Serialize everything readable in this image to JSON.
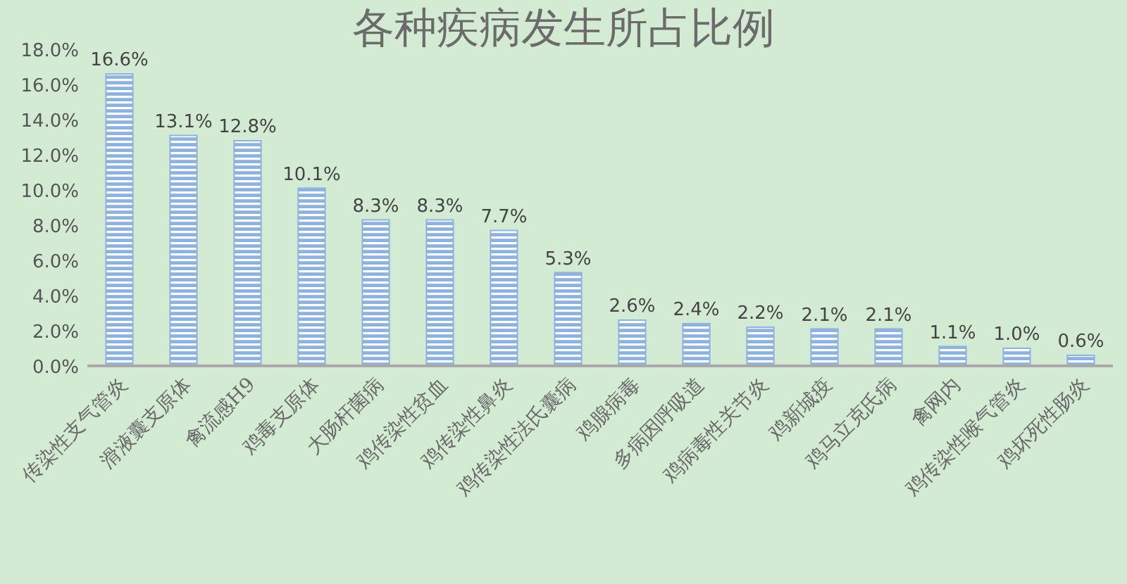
{
  "chart_data": {
    "type": "bar",
    "title": "各种疾病发生所占比例",
    "categories": [
      "传染性支气管炎",
      "滑液囊支原体",
      "禽流感H9",
      "鸡毒支原体",
      "大肠杆菌病",
      "鸡传染性贫血",
      "鸡传染性鼻炎",
      "鸡传染性法氏囊病",
      "鸡腺病毒",
      "多病因呼吸道",
      "鸡病毒性关节炎",
      "鸡新城疫",
      "鸡马立克氏病",
      "禽网内",
      "鸡传染性喉气管炎",
      "鸡坏死性肠炎"
    ],
    "values": [
      16.6,
      13.1,
      12.8,
      10.1,
      8.3,
      8.3,
      7.7,
      5.3,
      2.6,
      2.4,
      2.2,
      2.1,
      2.1,
      1.1,
      1.0,
      0.6
    ],
    "value_labels": [
      "16.6%",
      "13.1%",
      "12.8%",
      "10.1%",
      "8.3%",
      "8.3%",
      "7.7%",
      "5.3%",
      "2.6%",
      "2.4%",
      "2.2%",
      "2.1%",
      "2.1%",
      "1.1%",
      "1.0%",
      "0.6%"
    ],
    "color": "#8db3e2",
    "ylim": [
      0,
      18
    ],
    "yticks": [
      {
        "value": 0,
        "label": "0.0%"
      },
      {
        "value": 2,
        "label": "2.0%"
      },
      {
        "value": 4,
        "label": "4.0%"
      },
      {
        "value": 6,
        "label": "6.0%"
      },
      {
        "value": 8,
        "label": "8.0%"
      },
      {
        "value": 10,
        "label": "10.0%"
      },
      {
        "value": 12,
        "label": "12.0%"
      },
      {
        "value": 14,
        "label": "14.0%"
      },
      {
        "value": 16,
        "label": "16.0%"
      },
      {
        "value": 18,
        "label": "18.0%"
      }
    ],
    "grid": false
  }
}
